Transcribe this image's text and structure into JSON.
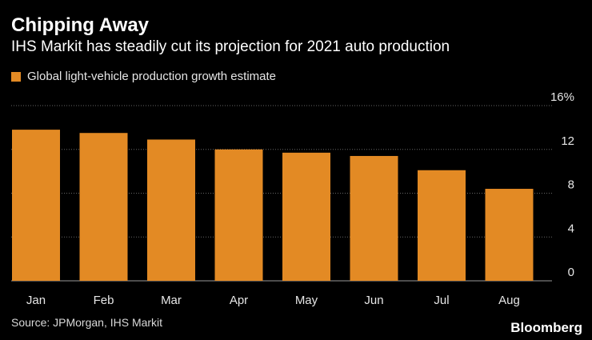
{
  "title": "Chipping Away",
  "subtitle": "IHS Markit has steadily cut its projection for 2021 auto production",
  "legend_label": "Global light-vehicle production growth estimate",
  "source": "Source: JPMorgan, IHS Markit",
  "brand": "Bloomberg",
  "colors": {
    "bar": "#e38a24",
    "grid": "#666666",
    "background": "#000000"
  },
  "chart_data": {
    "type": "bar",
    "title": "Chipping Away",
    "xlabel": "",
    "ylabel": "",
    "categories": [
      "Jan",
      "Feb",
      "Mar",
      "Apr",
      "May",
      "Jun",
      "Jul",
      "Aug"
    ],
    "series": [
      {
        "name": "Global light-vehicle production growth estimate",
        "values": [
          13.8,
          13.5,
          12.9,
          12.0,
          11.7,
          11.4,
          10.1,
          8.4
        ]
      }
    ],
    "ylim": [
      0,
      16
    ],
    "yticks": [
      0,
      4,
      8,
      12,
      16
    ],
    "ytick_labels": [
      "0",
      "4",
      "8",
      "12",
      "16%"
    ],
    "grid": true,
    "legend_position": "top-left"
  }
}
